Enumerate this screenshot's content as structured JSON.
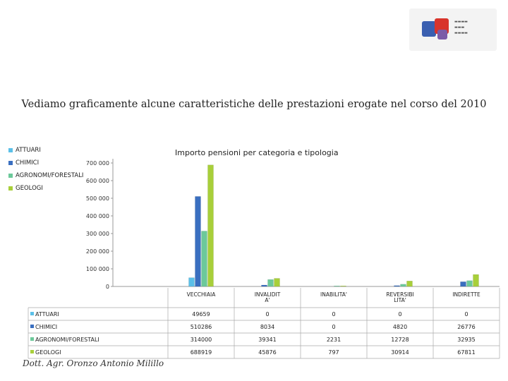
{
  "slide": {
    "headline": "Vediamo graficamente alcune caratteristiche delle prestazioni erogate nel corso del 2010",
    "author": "Dott. Agr. Oronzo Antonio Milillo",
    "logo": {
      "name": "epap-logo",
      "text": "epap"
    }
  },
  "chart_data": {
    "type": "bar",
    "title": "Importo pensioni per categoria e tipologia",
    "categories": [
      "VECCHIAIA",
      "INVALIDITA'",
      "INABILITA'",
      "REVERSIBILITA'",
      "INDIRETTE"
    ],
    "category_labels": [
      [
        "VECCHIAIA"
      ],
      [
        "INVALIDIT",
        "A'"
      ],
      [
        "INABILITA'"
      ],
      [
        "REVERSIBI",
        "LITA'"
      ],
      [
        "INDIRETTE"
      ]
    ],
    "series": [
      {
        "name": "ATTUARI",
        "color": "#5bc0e8",
        "values": [
          49659,
          0,
          0,
          0,
          0
        ],
        "labels": [
          "49659",
          "0",
          "0",
          "0",
          "0"
        ]
      },
      {
        "name": "CHIMICI",
        "color": "#3a6fc0",
        "values": [
          510286,
          8034,
          0,
          4820,
          26776
        ],
        "labels": [
          "510286",
          "8034",
          "0",
          "4820",
          "26776"
        ]
      },
      {
        "name": "AGRONOMI/FORESTALI",
        "color": "#6cc99a",
        "values": [
          314000,
          39341,
          2231,
          12728,
          32935
        ],
        "labels": [
          "314000",
          "39341",
          "2231",
          "12728",
          "32935"
        ]
      },
      {
        "name": "GEOLOGI",
        "color": "#a8cf3a",
        "values": [
          688919,
          45876,
          797,
          30914,
          67811
        ],
        "labels": [
          "688919",
          "45876",
          "797",
          "30914",
          "67811"
        ]
      }
    ],
    "yticks": [
      0,
      100000,
      200000,
      300000,
      400000,
      500000,
      600000,
      700000
    ],
    "ytick_labels": [
      "0",
      "100 000",
      "200 000",
      "300 000",
      "400 000",
      "500 000",
      "600 000",
      "700 000"
    ],
    "ylim": [
      0,
      700000
    ],
    "legend": "left",
    "data_table": true
  }
}
